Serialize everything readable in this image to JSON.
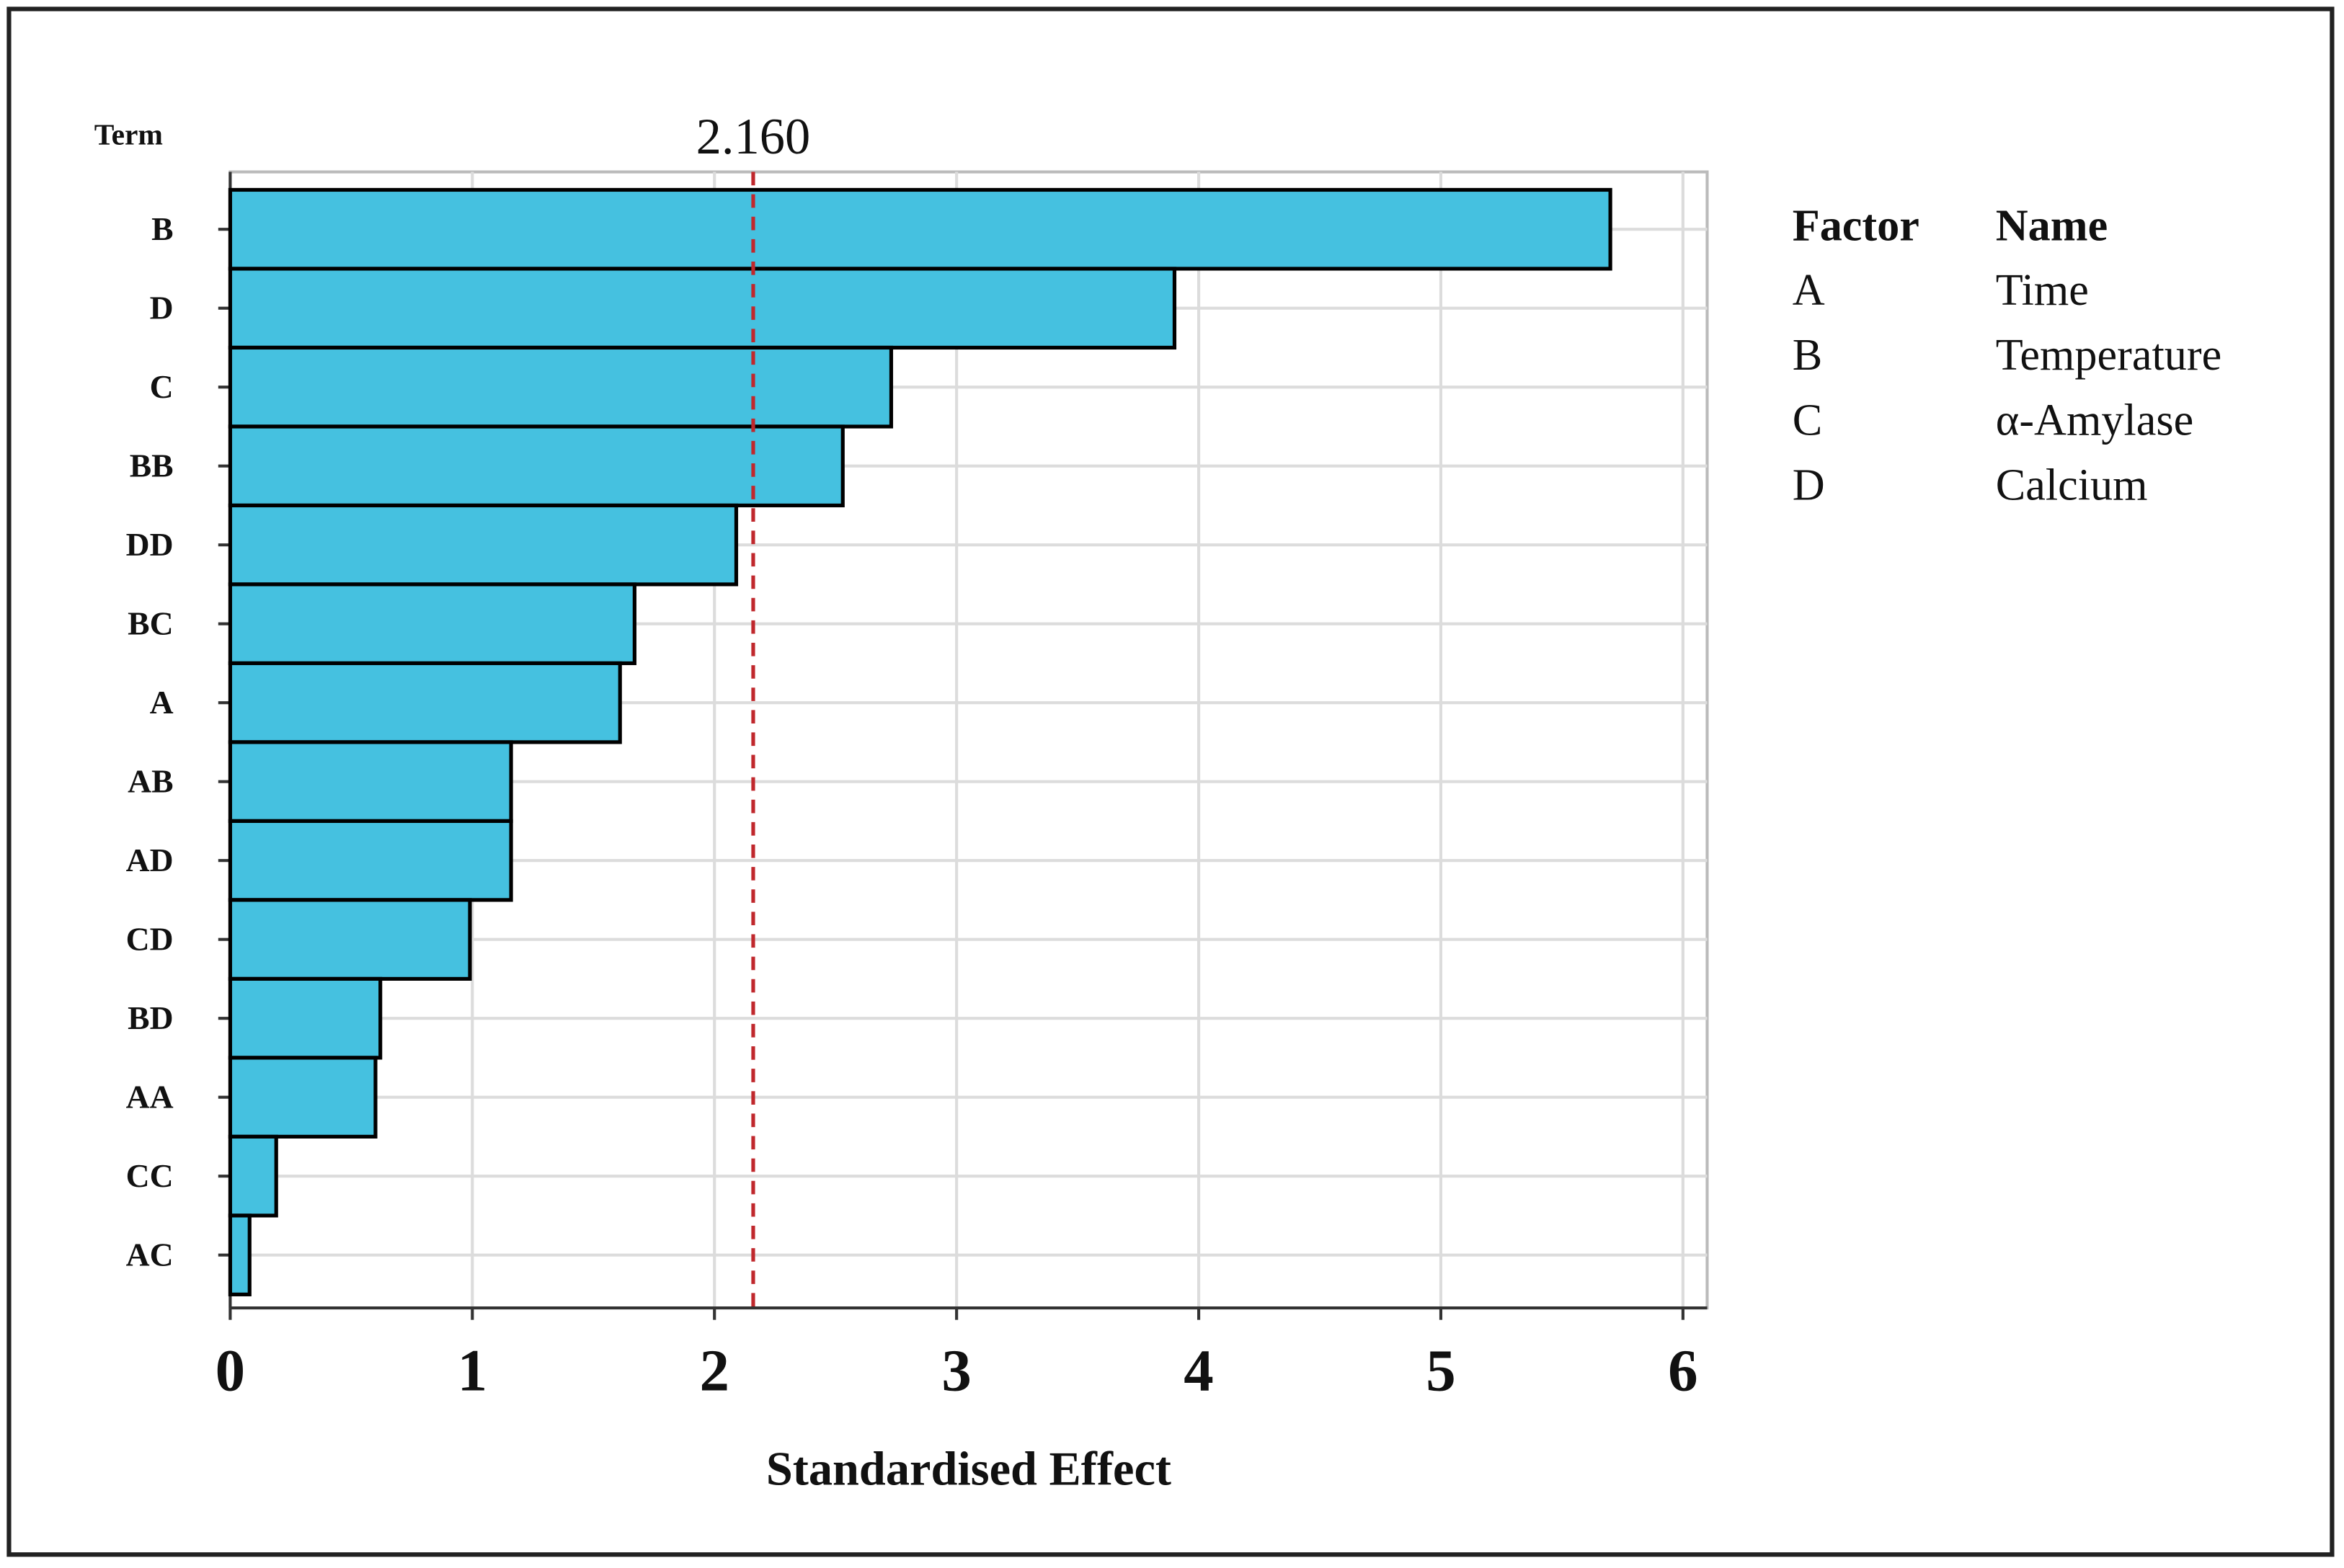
{
  "chart_data": {
    "type": "barh",
    "y_axis_label": "Term",
    "x_axis_label": "Standardised Effect",
    "categories": [
      "B",
      "D",
      "C",
      "BB",
      "DD",
      "BC",
      "A",
      "AB",
      "AD",
      "CD",
      "BD",
      "AA",
      "CC",
      "AC"
    ],
    "values": [
      5.7,
      3.9,
      2.73,
      2.53,
      2.09,
      1.67,
      1.61,
      1.16,
      1.16,
      0.99,
      0.62,
      0.6,
      0.19,
      0.08
    ],
    "color": "#45c1e0",
    "xlim": [
      0,
      6.1
    ],
    "xticks": [
      0,
      1,
      2,
      3,
      4,
      5,
      6
    ],
    "grid": true,
    "reference": {
      "value": 2.16,
      "label": "2.160",
      "color": "#c0282d"
    },
    "legend_table": {
      "headers": [
        "Factor",
        "Name"
      ],
      "rows": [
        [
          "A",
          "Time"
        ],
        [
          "B",
          "Temperature"
        ],
        [
          "C",
          "α-Amylase"
        ],
        [
          "D",
          "Calcium"
        ]
      ]
    }
  }
}
